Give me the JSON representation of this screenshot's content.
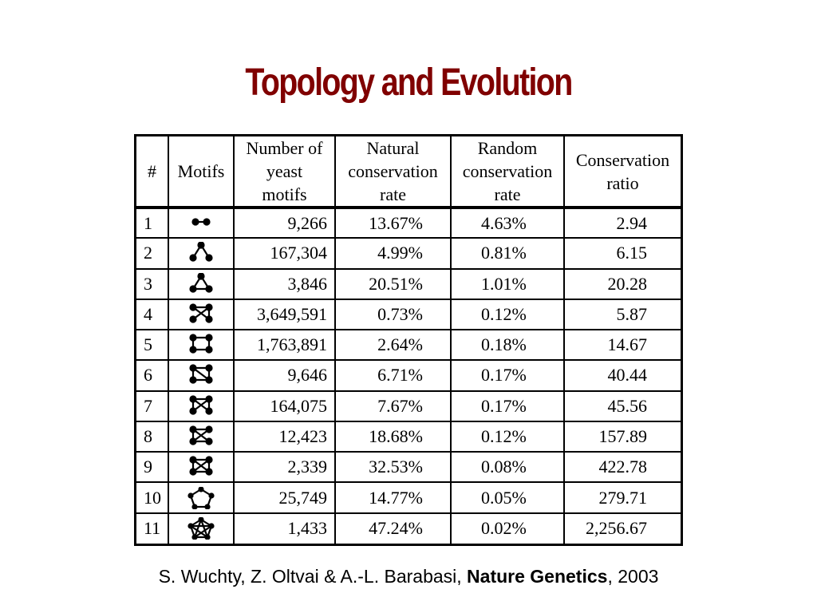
{
  "title": "Topology and Evolution",
  "table": {
    "headers": {
      "index": "#",
      "motifs": "Motifs",
      "count": [
        "Number of",
        "yeast",
        "motifs"
      ],
      "natural": [
        "Natural",
        "conservation",
        "rate"
      ],
      "random": [
        "Random",
        "conservation",
        "rate"
      ],
      "ratio": [
        "Conservation",
        "ratio"
      ]
    },
    "rows": [
      {
        "index": "1",
        "motif_icon": "motif-1-icon",
        "count": "9,266",
        "natural": "13.67%",
        "random": "4.63%",
        "ratio": "2.94"
      },
      {
        "index": "2",
        "motif_icon": "motif-2-icon",
        "count": "167,304",
        "natural": "4.99%",
        "random": "0.81%",
        "ratio": "6.15"
      },
      {
        "index": "3",
        "motif_icon": "motif-3-icon",
        "count": "3,846",
        "natural": "20.51%",
        "random": "1.01%",
        "ratio": "20.28"
      },
      {
        "index": "4",
        "motif_icon": "motif-4-icon",
        "count": "3,649,591",
        "natural": "0.73%",
        "random": "0.12%",
        "ratio": "5.87"
      },
      {
        "index": "5",
        "motif_icon": "motif-5-icon",
        "count": "1,763,891",
        "natural": "2.64%",
        "random": "0.18%",
        "ratio": "14.67"
      },
      {
        "index": "6",
        "motif_icon": "motif-6-icon",
        "count": "9,646",
        "natural": "6.71%",
        "random": "0.17%",
        "ratio": "40.44"
      },
      {
        "index": "7",
        "motif_icon": "motif-7-icon",
        "count": "164,075",
        "natural": "7.67%",
        "random": "0.17%",
        "ratio": "45.56"
      },
      {
        "index": "8",
        "motif_icon": "motif-8-icon",
        "count": "12,423",
        "natural": "18.68%",
        "random": "0.12%",
        "ratio": "157.89"
      },
      {
        "index": "9",
        "motif_icon": "motif-9-icon",
        "count": "2,339",
        "natural": "32.53%",
        "random": "0.08%",
        "ratio": "422.78"
      },
      {
        "index": "10",
        "motif_icon": "motif-10-icon",
        "count": "25,749",
        "natural": "14.77%",
        "random": "0.05%",
        "ratio": "279.71"
      },
      {
        "index": "11",
        "motif_icon": "motif-11-icon",
        "count": "1,433",
        "natural": "47.24%",
        "random": "0.02%",
        "ratio": "2,256.67"
      }
    ]
  },
  "citation": {
    "authors": "S. Wuchty, Z. Oltvai & A.-L. Barabasi, ",
    "journal": "Nature Genetics",
    "year": ", 2003"
  }
}
